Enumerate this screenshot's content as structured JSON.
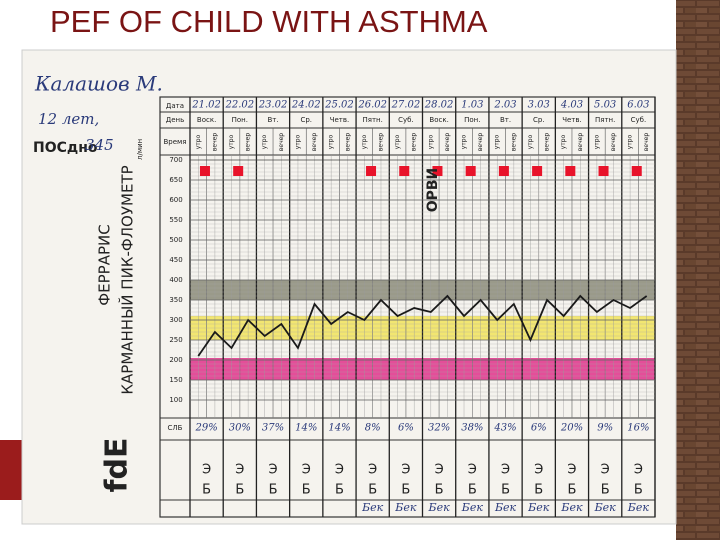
{
  "title": "PEF OF CHILD WITH ASTHMA",
  "sheet": {
    "patient": "Калашов М.",
    "age": "12 лет,",
    "norm_label": "ПОСдно",
    "norm_value": "345",
    "norm_unit": "л/мин",
    "device_brand": "ФЕРРАРИС",
    "device_name": "КАРМАННЫЙ ПИК-ФЛОУМЕТР",
    "logo": "fdE",
    "event": "ОРВИ",
    "row_labels": {
      "date": "Дата",
      "day": "День",
      "time": "Время",
      "slb": "СЛБ"
    },
    "dates": [
      "21.02",
      "22.02",
      "23.02",
      "24.02",
      "25.02",
      "26.02",
      "27.02",
      "28.02",
      "1.03",
      "2.03",
      "3.03",
      "4.03",
      "5.03",
      "6.03"
    ],
    "days": [
      "Воск.",
      "Пон.",
      "Вт.",
      "Ср.",
      "Четв.",
      "Пятн.",
      "Суб.",
      "Воск.",
      "Пон.",
      "Вт.",
      "Ср.",
      "Четв.",
      "Пятн.",
      "Суб."
    ],
    "time_labels": [
      "утро",
      "вечер"
    ],
    "yticks": [
      700,
      650,
      600,
      550,
      500,
      450,
      400,
      350,
      300,
      250,
      200,
      150,
      100
    ],
    "pef": [
      210,
      270,
      230,
      300,
      260,
      290,
      230,
      340,
      290,
      320,
      300,
      350,
      310,
      330,
      320,
      360,
      310,
      350,
      300,
      340,
      250,
      350,
      310,
      360,
      320,
      350,
      330,
      360
    ],
    "slb": [
      "29%",
      "30%",
      "37%",
      "14%",
      "14%",
      "8%",
      "6%",
      "32%",
      "38%",
      "43%",
      "6%",
      "20%",
      "9%",
      "16%"
    ],
    "therapy_top": "Э",
    "therapy_bottom": "Б",
    "therapy_extra": "Бек",
    "therapy_extra_from": 5
  }
}
